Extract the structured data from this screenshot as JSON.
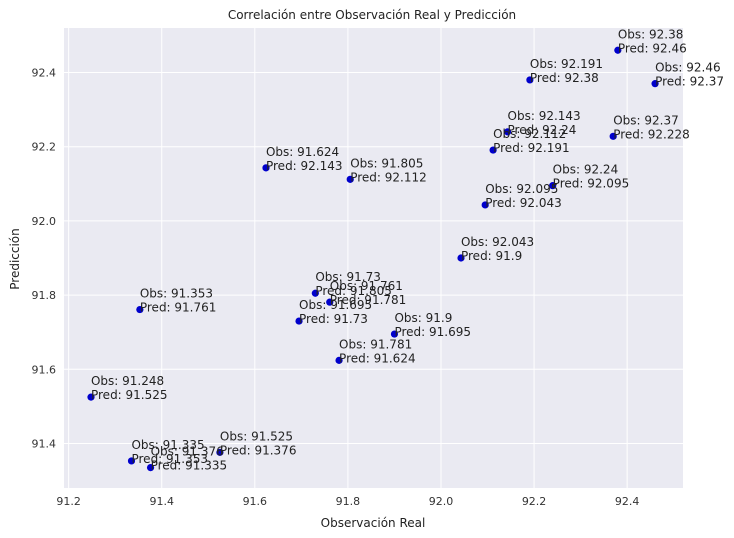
{
  "chart_data": {
    "type": "scatter",
    "title": "Correlación entre Observación Real y Predicción",
    "xlabel": "Observación Real",
    "ylabel": "Predicción",
    "xlim": [
      91.19,
      92.52
    ],
    "ylim": [
      91.28,
      92.52
    ],
    "xticks": [
      "91.2",
      "91.4",
      "91.6",
      "91.8",
      "92.0",
      "92.2",
      "92.4"
    ],
    "yticks": [
      "91.4",
      "91.6",
      "91.8",
      "92.0",
      "92.2",
      "92.4"
    ],
    "grid": true,
    "marker_color": "#0000cc",
    "plot_background": "#eaeaf2",
    "points": [
      {
        "x": 92.38,
        "y": 92.46,
        "obs": "Obs: 92.38",
        "pred": "Pred: 92.46"
      },
      {
        "x": 92.46,
        "y": 92.37,
        "obs": "Obs: 92.46",
        "pred": "Pred: 92.37"
      },
      {
        "x": 92.191,
        "y": 92.38,
        "obs": "Obs: 92.191",
        "pred": "Pred: 92.38"
      },
      {
        "x": 92.143,
        "y": 92.24,
        "obs": "Obs: 92.143",
        "pred": "Pred: 92.24"
      },
      {
        "x": 92.37,
        "y": 92.228,
        "obs": "Obs: 92.37",
        "pred": "Pred: 92.228"
      },
      {
        "x": 92.112,
        "y": 92.191,
        "obs": "Obs: 92.112",
        "pred": "Pred: 92.191"
      },
      {
        "x": 91.624,
        "y": 92.143,
        "obs": "Obs: 91.624",
        "pred": "Pred: 92.143"
      },
      {
        "x": 91.805,
        "y": 92.112,
        "obs": "Obs: 91.805",
        "pred": "Pred: 92.112"
      },
      {
        "x": 92.24,
        "y": 92.095,
        "obs": "Obs: 92.24",
        "pred": "Pred: 92.095"
      },
      {
        "x": 92.095,
        "y": 92.043,
        "obs": "Obs: 92.095",
        "pred": "Pred: 92.043"
      },
      {
        "x": 92.043,
        "y": 91.9,
        "obs": "Obs: 92.043",
        "pred": "Pred: 91.9"
      },
      {
        "x": 91.73,
        "y": 91.805,
        "obs": "Obs: 91.73",
        "pred": "Pred: 91.805"
      },
      {
        "x": 91.761,
        "y": 91.781,
        "obs": "Obs: 91.761",
        "pred": "Pred: 91.781"
      },
      {
        "x": 91.353,
        "y": 91.761,
        "obs": "Obs: 91.353",
        "pred": "Pred: 91.761"
      },
      {
        "x": 91.695,
        "y": 91.73,
        "obs": "Obs: 91.695",
        "pred": "Pred: 91.73"
      },
      {
        "x": 91.9,
        "y": 91.695,
        "obs": "Obs: 91.9",
        "pred": "Pred: 91.695"
      },
      {
        "x": 91.781,
        "y": 91.624,
        "obs": "Obs: 91.781",
        "pred": "Pred: 91.624"
      },
      {
        "x": 91.248,
        "y": 91.525,
        "obs": "Obs: 91.248",
        "pred": "Pred: 91.525"
      },
      {
        "x": 91.525,
        "y": 91.376,
        "obs": "Obs: 91.525",
        "pred": "Pred: 91.376"
      },
      {
        "x": 91.335,
        "y": 91.353,
        "obs": "Obs: 91.335",
        "pred": "Pred: 91.353"
      },
      {
        "x": 91.376,
        "y": 91.335,
        "obs": "Obs: 91.376",
        "pred": "Pred: 91.335"
      }
    ]
  }
}
